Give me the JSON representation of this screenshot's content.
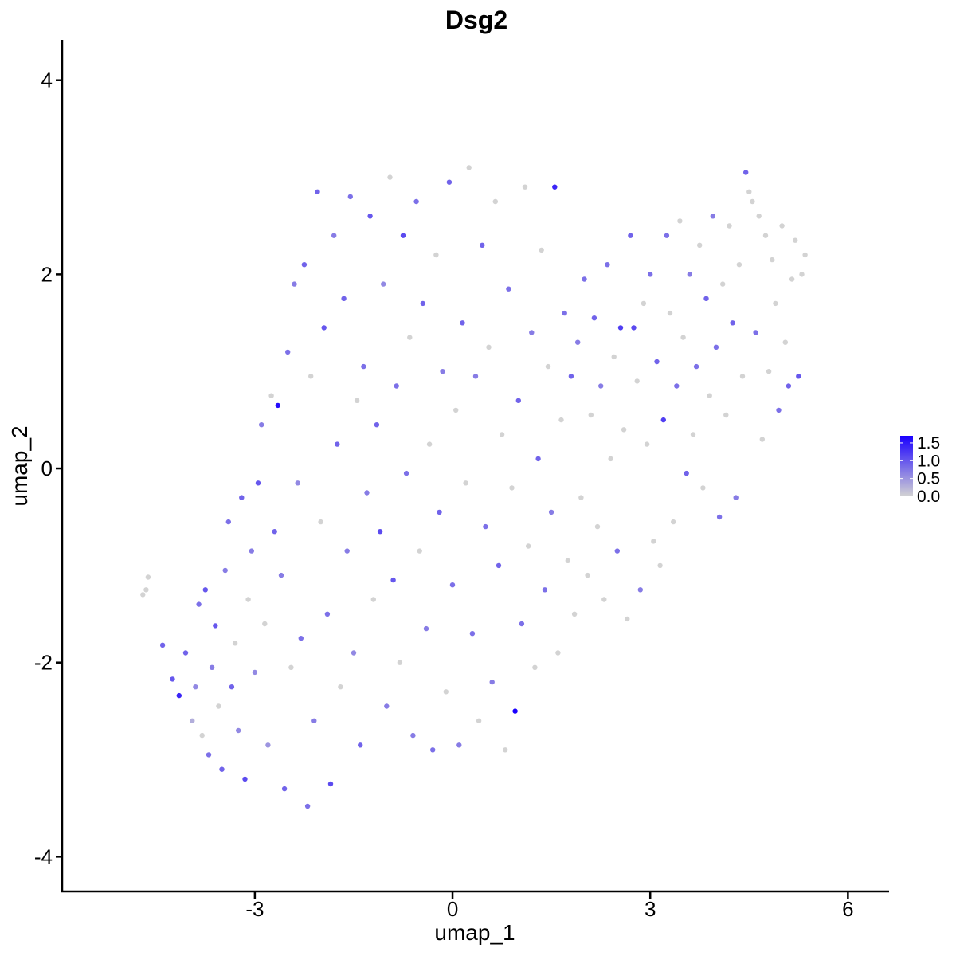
{
  "chart_data": {
    "type": "scatter",
    "title": "Dsg2",
    "xlabel": "umap_1",
    "ylabel": "umap_2",
    "xlim": [
      -5.9,
      6.6
    ],
    "ylim": [
      -4.35,
      4.4
    ],
    "xticks": [
      -3,
      0,
      3,
      6
    ],
    "xtick_labels": [
      "-3",
      "0",
      "3",
      "6"
    ],
    "yticks": [
      -4,
      -2,
      0,
      2,
      4
    ],
    "ytick_labels": [
      "-4",
      "-2",
      "0",
      "2",
      "4"
    ],
    "grid": false,
    "legend": {
      "placement": "right",
      "type": "continuous colorbar",
      "range": [
        0.0,
        1.7
      ],
      "breaks": [
        0.0,
        0.5,
        1.0,
        1.5
      ],
      "labels": [
        "0.0",
        "0.5",
        "1.0",
        "1.5"
      ]
    },
    "colors": {
      "low": "#d3d3d3",
      "high": "#1a00ff"
    },
    "points": [
      {
        "x": -4.7,
        "y": -1.3,
        "v": 0.0
      },
      {
        "x": -4.65,
        "y": -1.25,
        "v": 0.0
      },
      {
        "x": -4.62,
        "y": -1.12,
        "v": 0.0
      },
      {
        "x": -4.4,
        "y": -1.82,
        "v": 0.9
      },
      {
        "x": -4.25,
        "y": -2.17,
        "v": 1.0
      },
      {
        "x": -4.15,
        "y": -2.34,
        "v": 1.4
      },
      {
        "x": -4.05,
        "y": -1.9,
        "v": 0.9
      },
      {
        "x": -3.95,
        "y": -2.6,
        "v": 0.3
      },
      {
        "x": -3.9,
        "y": -2.25,
        "v": 0.6
      },
      {
        "x": -3.85,
        "y": -1.4,
        "v": 0.8
      },
      {
        "x": -3.8,
        "y": -2.75,
        "v": 0.0
      },
      {
        "x": -3.75,
        "y": -1.25,
        "v": 1.0
      },
      {
        "x": -3.7,
        "y": -2.95,
        "v": 0.8
      },
      {
        "x": -3.65,
        "y": -2.05,
        "v": 0.7
      },
      {
        "x": -3.6,
        "y": -1.62,
        "v": 1.0
      },
      {
        "x": -3.55,
        "y": -2.45,
        "v": 0.0
      },
      {
        "x": -3.5,
        "y": -3.1,
        "v": 0.9
      },
      {
        "x": -3.45,
        "y": -1.05,
        "v": 0.7
      },
      {
        "x": -3.4,
        "y": -0.55,
        "v": 0.8
      },
      {
        "x": -3.35,
        "y": -2.25,
        "v": 0.9
      },
      {
        "x": -3.3,
        "y": -1.8,
        "v": 0.0
      },
      {
        "x": -3.25,
        "y": -2.7,
        "v": 0.6
      },
      {
        "x": -3.2,
        "y": -0.3,
        "v": 0.9
      },
      {
        "x": -3.15,
        "y": -3.2,
        "v": 1.1
      },
      {
        "x": -3.1,
        "y": -1.35,
        "v": 0.0
      },
      {
        "x": -3.05,
        "y": -0.85,
        "v": 0.7
      },
      {
        "x": -3.0,
        "y": -2.1,
        "v": 0.6
      },
      {
        "x": -2.95,
        "y": -0.15,
        "v": 1.0
      },
      {
        "x": -2.9,
        "y": 0.45,
        "v": 0.7
      },
      {
        "x": -2.85,
        "y": -1.6,
        "v": 0.0
      },
      {
        "x": -2.8,
        "y": -2.85,
        "v": 0.5
      },
      {
        "x": -2.75,
        "y": 0.75,
        "v": 0.0
      },
      {
        "x": -2.7,
        "y": -0.65,
        "v": 0.9
      },
      {
        "x": -2.65,
        "y": 0.65,
        "v": 1.6
      },
      {
        "x": -2.6,
        "y": -1.1,
        "v": 0.7
      },
      {
        "x": -2.55,
        "y": -3.3,
        "v": 0.9
      },
      {
        "x": -2.5,
        "y": 1.2,
        "v": 0.8
      },
      {
        "x": -2.45,
        "y": -2.05,
        "v": 0.0
      },
      {
        "x": -2.4,
        "y": 1.9,
        "v": 0.7
      },
      {
        "x": -2.35,
        "y": -0.15,
        "v": 0.6
      },
      {
        "x": -2.3,
        "y": -1.75,
        "v": 0.8
      },
      {
        "x": -2.25,
        "y": 2.1,
        "v": 0.9
      },
      {
        "x": -2.2,
        "y": -3.48,
        "v": 0.8
      },
      {
        "x": -2.15,
        "y": 0.95,
        "v": 0.0
      },
      {
        "x": -2.1,
        "y": -2.6,
        "v": 0.7
      },
      {
        "x": -2.05,
        "y": 2.85,
        "v": 0.9
      },
      {
        "x": -2.0,
        "y": -0.55,
        "v": 0.0
      },
      {
        "x": -1.95,
        "y": 1.45,
        "v": 1.0
      },
      {
        "x": -1.9,
        "y": -1.5,
        "v": 0.8
      },
      {
        "x": -1.85,
        "y": -3.25,
        "v": 1.1
      },
      {
        "x": -1.8,
        "y": 2.4,
        "v": 0.7
      },
      {
        "x": -1.75,
        "y": 0.25,
        "v": 0.9
      },
      {
        "x": -1.7,
        "y": -2.25,
        "v": 0.0
      },
      {
        "x": -1.65,
        "y": 1.75,
        "v": 0.9
      },
      {
        "x": -1.6,
        "y": -0.85,
        "v": 0.7
      },
      {
        "x": -1.55,
        "y": 2.8,
        "v": 0.8
      },
      {
        "x": -1.5,
        "y": -1.9,
        "v": 0.6
      },
      {
        "x": -1.45,
        "y": 0.7,
        "v": 0.0
      },
      {
        "x": -1.4,
        "y": -2.85,
        "v": 0.9
      },
      {
        "x": -1.35,
        "y": 1.05,
        "v": 0.8
      },
      {
        "x": -1.3,
        "y": -0.25,
        "v": 0.7
      },
      {
        "x": -1.25,
        "y": 2.6,
        "v": 1.0
      },
      {
        "x": -1.2,
        "y": -1.35,
        "v": 0.0
      },
      {
        "x": -1.15,
        "y": 0.45,
        "v": 0.9
      },
      {
        "x": -1.1,
        "y": -0.65,
        "v": 1.1
      },
      {
        "x": -1.05,
        "y": 1.9,
        "v": 0.6
      },
      {
        "x": -1.0,
        "y": -2.45,
        "v": 0.7
      },
      {
        "x": -0.95,
        "y": 3.0,
        "v": 0.0
      },
      {
        "x": -0.9,
        "y": -1.15,
        "v": 1.0
      },
      {
        "x": -0.85,
        "y": 0.85,
        "v": 0.8
      },
      {
        "x": -0.8,
        "y": -2.0,
        "v": 0.0
      },
      {
        "x": -0.75,
        "y": 2.4,
        "v": 1.1
      },
      {
        "x": -0.7,
        "y": -0.05,
        "v": 0.8
      },
      {
        "x": -0.65,
        "y": 1.35,
        "v": 0.0
      },
      {
        "x": -0.6,
        "y": -2.75,
        "v": 0.7
      },
      {
        "x": -0.55,
        "y": 2.75,
        "v": 0.8
      },
      {
        "x": -0.5,
        "y": -0.85,
        "v": 0.0
      },
      {
        "x": -0.45,
        "y": 1.7,
        "v": 0.9
      },
      {
        "x": -0.4,
        "y": -1.65,
        "v": 0.7
      },
      {
        "x": -0.35,
        "y": 0.25,
        "v": 0.0
      },
      {
        "x": -0.3,
        "y": -2.9,
        "v": 0.8
      },
      {
        "x": -0.25,
        "y": 2.2,
        "v": 0.0
      },
      {
        "x": -0.2,
        "y": -0.45,
        "v": 0.9
      },
      {
        "x": -0.15,
        "y": 1.0,
        "v": 0.7
      },
      {
        "x": -0.1,
        "y": -2.3,
        "v": 0.0
      },
      {
        "x": -0.05,
        "y": 2.95,
        "v": 0.9
      },
      {
        "x": 0.0,
        "y": -1.2,
        "v": 0.8
      },
      {
        "x": 0.05,
        "y": 0.6,
        "v": 0.0
      },
      {
        "x": 0.1,
        "y": -2.85,
        "v": 0.7
      },
      {
        "x": 0.15,
        "y": 1.5,
        "v": 0.9
      },
      {
        "x": 0.2,
        "y": -0.15,
        "v": 0.0
      },
      {
        "x": 0.25,
        "y": 3.1,
        "v": 0.0
      },
      {
        "x": 0.3,
        "y": -1.7,
        "v": 0.8
      },
      {
        "x": 0.35,
        "y": 0.95,
        "v": 0.7
      },
      {
        "x": 0.4,
        "y": -2.6,
        "v": 0.0
      },
      {
        "x": 0.45,
        "y": 2.3,
        "v": 0.9
      },
      {
        "x": 0.5,
        "y": -0.6,
        "v": 0.8
      },
      {
        "x": 0.55,
        "y": 1.25,
        "v": 0.0
      },
      {
        "x": 0.6,
        "y": -2.2,
        "v": 0.7
      },
      {
        "x": 0.65,
        "y": 2.75,
        "v": 0.0
      },
      {
        "x": 0.7,
        "y": -1.0,
        "v": 0.9
      },
      {
        "x": 0.75,
        "y": 0.35,
        "v": 0.0
      },
      {
        "x": 0.8,
        "y": -2.9,
        "v": 0.0
      },
      {
        "x": 0.85,
        "y": 1.85,
        "v": 0.8
      },
      {
        "x": 0.9,
        "y": -0.2,
        "v": 0.0
      },
      {
        "x": 0.95,
        "y": -2.5,
        "v": 1.7
      },
      {
        "x": 1.0,
        "y": 0.7,
        "v": 0.9
      },
      {
        "x": 1.05,
        "y": -1.6,
        "v": 0.8
      },
      {
        "x": 1.1,
        "y": 2.9,
        "v": 0.0
      },
      {
        "x": 1.15,
        "y": -0.8,
        "v": 0.0
      },
      {
        "x": 1.2,
        "y": 1.4,
        "v": 0.7
      },
      {
        "x": 1.25,
        "y": -2.05,
        "v": 0.0
      },
      {
        "x": 1.3,
        "y": 0.1,
        "v": 0.9
      },
      {
        "x": 1.35,
        "y": 2.25,
        "v": 0.0
      },
      {
        "x": 1.4,
        "y": -1.25,
        "v": 0.8
      },
      {
        "x": 1.45,
        "y": 1.05,
        "v": 0.0
      },
      {
        "x": 1.5,
        "y": -0.45,
        "v": 0.7
      },
      {
        "x": 1.55,
        "y": 2.9,
        "v": 1.4
      },
      {
        "x": 1.6,
        "y": -1.9,
        "v": 0.0
      },
      {
        "x": 1.65,
        "y": 0.5,
        "v": 0.0
      },
      {
        "x": 1.7,
        "y": 1.6,
        "v": 0.8
      },
      {
        "x": 1.75,
        "y": -0.95,
        "v": 0.0
      },
      {
        "x": 1.8,
        "y": 0.95,
        "v": 0.9
      },
      {
        "x": 1.85,
        "y": -1.5,
        "v": 0.0
      },
      {
        "x": 1.9,
        "y": 1.3,
        "v": 0.7
      },
      {
        "x": 1.95,
        "y": -0.3,
        "v": 0.0
      },
      {
        "x": 2.0,
        "y": 1.95,
        "v": 0.8
      },
      {
        "x": 2.05,
        "y": -1.1,
        "v": 0.0
      },
      {
        "x": 2.1,
        "y": 0.55,
        "v": 0.0
      },
      {
        "x": 2.15,
        "y": 1.55,
        "v": 0.9
      },
      {
        "x": 2.2,
        "y": -0.6,
        "v": 0.0
      },
      {
        "x": 2.25,
        "y": 0.85,
        "v": 0.7
      },
      {
        "x": 2.3,
        "y": -1.35,
        "v": 0.0
      },
      {
        "x": 2.35,
        "y": 2.1,
        "v": 0.8
      },
      {
        "x": 2.4,
        "y": 0.1,
        "v": 0.0
      },
      {
        "x": 2.45,
        "y": 1.15,
        "v": 0.0
      },
      {
        "x": 2.5,
        "y": -0.85,
        "v": 0.8
      },
      {
        "x": 2.55,
        "y": 1.45,
        "v": 1.2
      },
      {
        "x": 2.6,
        "y": 0.4,
        "v": 0.0
      },
      {
        "x": 2.65,
        "y": -1.55,
        "v": 0.0
      },
      {
        "x": 2.7,
        "y": 2.4,
        "v": 0.9
      },
      {
        "x": 2.75,
        "y": 1.45,
        "v": 1.1
      },
      {
        "x": 2.8,
        "y": 0.9,
        "v": 0.0
      },
      {
        "x": 2.85,
        "y": -1.25,
        "v": 0.7
      },
      {
        "x": 2.9,
        "y": 1.7,
        "v": 0.0
      },
      {
        "x": 2.95,
        "y": 0.25,
        "v": 0.0
      },
      {
        "x": 3.0,
        "y": 2.0,
        "v": 0.8
      },
      {
        "x": 3.05,
        "y": -0.75,
        "v": 0.0
      },
      {
        "x": 3.1,
        "y": 1.1,
        "v": 0.9
      },
      {
        "x": 3.15,
        "y": -1.0,
        "v": 0.0
      },
      {
        "x": 3.2,
        "y": 0.5,
        "v": 1.2
      },
      {
        "x": 3.25,
        "y": 2.4,
        "v": 0.8
      },
      {
        "x": 3.3,
        "y": 1.6,
        "v": 0.0
      },
      {
        "x": 3.35,
        "y": -0.55,
        "v": 0.0
      },
      {
        "x": 3.4,
        "y": 0.85,
        "v": 0.8
      },
      {
        "x": 3.45,
        "y": 2.55,
        "v": 0.0
      },
      {
        "x": 3.5,
        "y": 1.35,
        "v": 0.0
      },
      {
        "x": 3.55,
        "y": -0.05,
        "v": 0.9
      },
      {
        "x": 3.6,
        "y": 2.0,
        "v": 0.7
      },
      {
        "x": 3.65,
        "y": 0.35,
        "v": 0.0
      },
      {
        "x": 3.7,
        "y": 1.05,
        "v": 0.8
      },
      {
        "x": 3.75,
        "y": 2.3,
        "v": 0.0
      },
      {
        "x": 3.8,
        "y": -0.2,
        "v": 0.0
      },
      {
        "x": 3.85,
        "y": 1.75,
        "v": 0.9
      },
      {
        "x": 3.9,
        "y": 0.75,
        "v": 0.0
      },
      {
        "x": 3.95,
        "y": 2.6,
        "v": 0.7
      },
      {
        "x": 4.0,
        "y": 1.25,
        "v": 0.8
      },
      {
        "x": 4.05,
        "y": -0.5,
        "v": 0.8
      },
      {
        "x": 4.1,
        "y": 1.9,
        "v": 0.0
      },
      {
        "x": 4.15,
        "y": 0.55,
        "v": 0.0
      },
      {
        "x": 4.2,
        "y": 2.5,
        "v": 0.0
      },
      {
        "x": 4.25,
        "y": 1.5,
        "v": 0.9
      },
      {
        "x": 4.3,
        "y": -0.3,
        "v": 0.7
      },
      {
        "x": 4.35,
        "y": 2.1,
        "v": 0.0
      },
      {
        "x": 4.4,
        "y": 0.95,
        "v": 0.0
      },
      {
        "x": 4.45,
        "y": 3.05,
        "v": 0.9
      },
      {
        "x": 4.5,
        "y": 2.85,
        "v": 0.0
      },
      {
        "x": 4.55,
        "y": 2.75,
        "v": 0.0
      },
      {
        "x": 4.6,
        "y": 1.4,
        "v": 0.8
      },
      {
        "x": 4.65,
        "y": 2.6,
        "v": 0.0
      },
      {
        "x": 4.7,
        "y": 0.3,
        "v": 0.0
      },
      {
        "x": 4.75,
        "y": 2.4,
        "v": 0.0
      },
      {
        "x": 4.8,
        "y": 1.0,
        "v": 0.0
      },
      {
        "x": 4.85,
        "y": 2.15,
        "v": 0.0
      },
      {
        "x": 4.9,
        "y": 1.7,
        "v": 0.0
      },
      {
        "x": 4.95,
        "y": 0.6,
        "v": 0.8
      },
      {
        "x": 5.0,
        "y": 2.5,
        "v": 0.0
      },
      {
        "x": 5.05,
        "y": 1.3,
        "v": 0.0
      },
      {
        "x": 5.1,
        "y": 0.85,
        "v": 0.9
      },
      {
        "x": 5.15,
        "y": 1.95,
        "v": 0.0
      },
      {
        "x": 5.2,
        "y": 2.35,
        "v": 0.0
      },
      {
        "x": 5.25,
        "y": 0.95,
        "v": 1.0
      },
      {
        "x": 5.3,
        "y": 2.0,
        "v": 0.0
      },
      {
        "x": 5.35,
        "y": 2.2,
        "v": 0.0
      }
    ]
  }
}
